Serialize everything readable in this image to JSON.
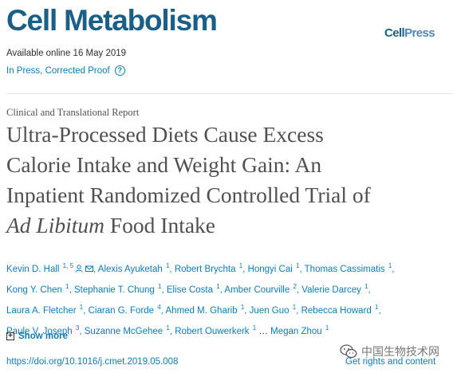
{
  "journal": {
    "title": "Cell Metabolism",
    "publisher_logo_part1": "Cell",
    "publisher_logo_part2": "Press"
  },
  "article_meta": {
    "available": "Available online 16 May 2019",
    "status_link": "In Press, Corrected Proof",
    "help_icon": "question-circle-icon",
    "type": "Clinical and Translational Report"
  },
  "title": {
    "line1": "Ultra-Processed Diets Cause Excess",
    "line2": "Calorie Intake and Weight Gain: An",
    "line3": "Inpatient Randomized Controlled Trial of",
    "line4_italic": "Ad Libitum",
    "line4_rest": " Food Intake"
  },
  "authors": [
    {
      "name": "Kevin D. Hall",
      "sup": "1, 5"
    },
    {
      "name": "Alexis Ayuketah",
      "sup": "1"
    },
    {
      "name": "Robert Brychta",
      "sup": "1"
    },
    {
      "name": "Hongyi Cai",
      "sup": "1"
    },
    {
      "name": "Thomas Cassimatis",
      "sup": "1"
    },
    {
      "name": "Kong Y. Chen",
      "sup": "1"
    },
    {
      "name": "Stephanie T. Chung",
      "sup": "1"
    },
    {
      "name": "Elise Costa",
      "sup": "1"
    },
    {
      "name": "Amber Courville",
      "sup": "2"
    },
    {
      "name": "Valerie Darcey",
      "sup": "1"
    },
    {
      "name": "Laura A. Fletcher",
      "sup": "1"
    },
    {
      "name": "Ciaran G. Forde",
      "sup": "4"
    },
    {
      "name": "Ahmed M. Gharib",
      "sup": "1"
    },
    {
      "name": "Juen Guo",
      "sup": "1"
    },
    {
      "name": "Rebecca Howard",
      "sup": "1"
    },
    {
      "name": "Paule V. Joseph",
      "sup": "3"
    },
    {
      "name": "Suzanne McGehee",
      "sup": "1"
    },
    {
      "name": "Robert Ouwerkerk",
      "sup": "1"
    },
    {
      "name": "Megan Zhou",
      "sup": "1"
    }
  ],
  "authors_ellipsis": "…",
  "show_more": "Show more",
  "doi": "https://doi.org/10.1016/j.cmet.2019.05.008",
  "rights": "Get rights and content",
  "watermark": "中国生物技术网",
  "colors": {
    "brand": "#1a5f87",
    "link": "#0c7dbb",
    "title_text": "#505050"
  }
}
